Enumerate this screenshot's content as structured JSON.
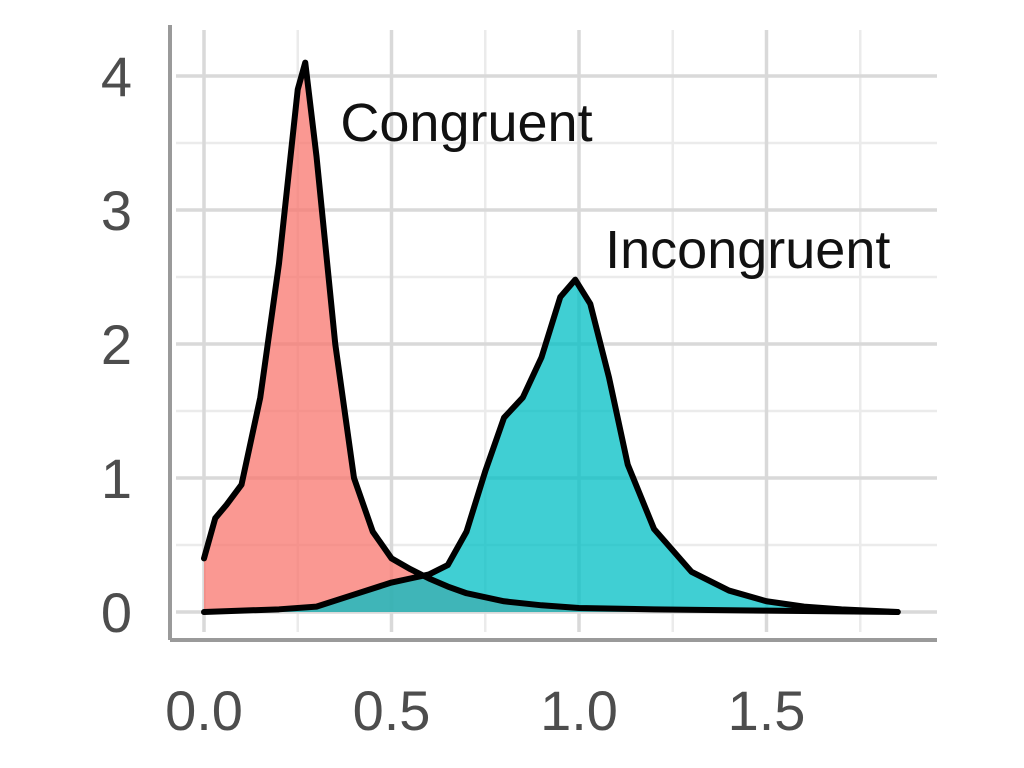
{
  "chart_data": {
    "type": "area",
    "title": "",
    "xlabel": "",
    "ylabel": "",
    "xlim": [
      -0.03,
      1.95
    ],
    "ylim": [
      -0.2,
      4.3
    ],
    "x_ticks": [
      0.0,
      0.5,
      1.0,
      1.5
    ],
    "x_tick_labels": [
      "0.0",
      "0.5",
      "1.0",
      "1.5"
    ],
    "y_ticks": [
      0,
      1,
      2,
      3,
      4
    ],
    "y_tick_labels": [
      "0",
      "1",
      "2",
      "3",
      "4"
    ],
    "grid": true,
    "legend": "none (direct labels)",
    "series": [
      {
        "name": "Congruent",
        "color": "#F8766D",
        "label_x": 0.7,
        "label_y": 3.65,
        "points": [
          [
            0.0,
            0.4
          ],
          [
            0.03,
            0.7
          ],
          [
            0.06,
            0.8
          ],
          [
            0.1,
            0.95
          ],
          [
            0.15,
            1.6
          ],
          [
            0.2,
            2.6
          ],
          [
            0.25,
            3.9
          ],
          [
            0.27,
            4.1
          ],
          [
            0.3,
            3.4
          ],
          [
            0.35,
            2.0
          ],
          [
            0.4,
            1.0
          ],
          [
            0.45,
            0.6
          ],
          [
            0.5,
            0.4
          ],
          [
            0.55,
            0.32
          ],
          [
            0.6,
            0.25
          ],
          [
            0.65,
            0.19
          ],
          [
            0.7,
            0.14
          ],
          [
            0.8,
            0.08
          ],
          [
            0.9,
            0.05
          ],
          [
            1.0,
            0.03
          ],
          [
            1.2,
            0.02
          ],
          [
            1.5,
            0.01
          ],
          [
            1.85,
            0.0
          ]
        ]
      },
      {
        "name": "Incongruent",
        "color": "#00BFC4",
        "label_x": 1.45,
        "label_y": 2.7,
        "points": [
          [
            0.0,
            0.0
          ],
          [
            0.1,
            0.01
          ],
          [
            0.2,
            0.02
          ],
          [
            0.3,
            0.04
          ],
          [
            0.4,
            0.13
          ],
          [
            0.5,
            0.22
          ],
          [
            0.55,
            0.25
          ],
          [
            0.6,
            0.28
          ],
          [
            0.65,
            0.35
          ],
          [
            0.7,
            0.6
          ],
          [
            0.75,
            1.05
          ],
          [
            0.8,
            1.45
          ],
          [
            0.85,
            1.6
          ],
          [
            0.9,
            1.9
          ],
          [
            0.95,
            2.35
          ],
          [
            0.99,
            2.48
          ],
          [
            1.03,
            2.3
          ],
          [
            1.08,
            1.75
          ],
          [
            1.13,
            1.1
          ],
          [
            1.2,
            0.62
          ],
          [
            1.3,
            0.3
          ],
          [
            1.4,
            0.16
          ],
          [
            1.5,
            0.08
          ],
          [
            1.6,
            0.04
          ],
          [
            1.7,
            0.02
          ],
          [
            1.85,
            0.0
          ]
        ]
      }
    ]
  }
}
